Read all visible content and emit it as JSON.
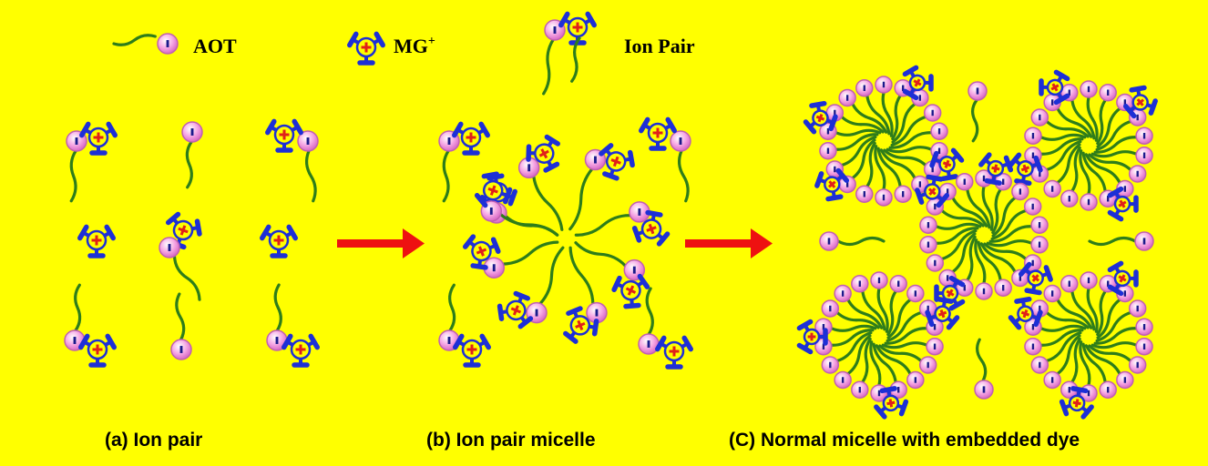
{
  "legend": {
    "aot_label": "AOT",
    "mg_label": "MG",
    "mg_charge": "+",
    "ion_pair_label": "Ion Pair"
  },
  "captions": {
    "a": "(a) Ion pair",
    "b": "(b) Ion pair micelle",
    "c": "(C) Normal micelle with embedded dye"
  },
  "icons": {
    "aot": "aot-surfactant-icon",
    "mg": "mg-cation-icon",
    "ion_pair": "ion-pair-icon",
    "arrow": "right-arrow-icon"
  },
  "colors": {
    "background": "#ffff00",
    "tail": "#2e7d1a",
    "head_fill": "#f48fd8",
    "head_stroke": "#c060b0",
    "mg_blue": "#1d2fd6",
    "mg_plus": "#e0201a",
    "arrow": "#ee1111"
  }
}
